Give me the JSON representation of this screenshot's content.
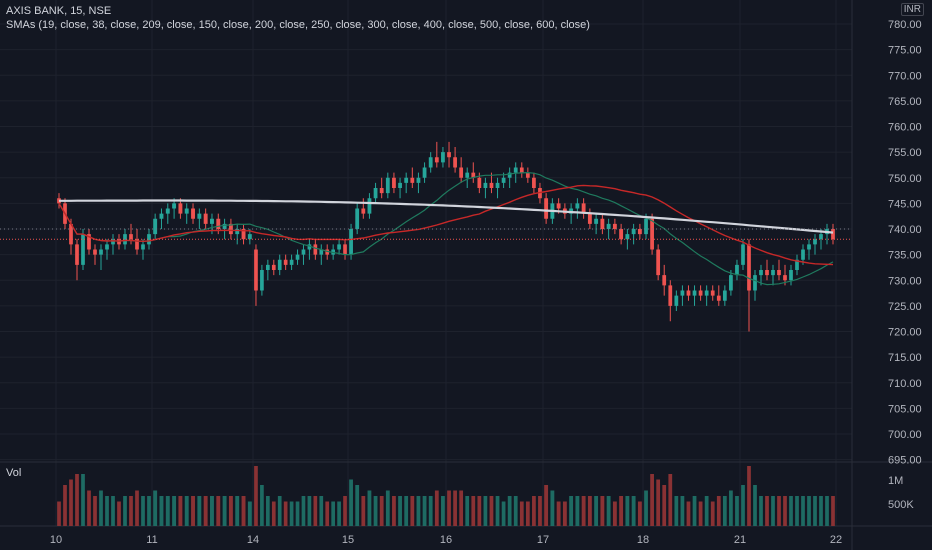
{
  "header": {
    "symbol": "AXIS BANK, 15, NSE",
    "indicator": "SMAs (19, close, 38, close, 209, close, 150, close, 200, close, 250, close, 300, close, 400, close, 500, close, 600, close)",
    "currency": "INR"
  },
  "volume_pane": {
    "label": "Vol"
  },
  "colors": {
    "up": "#26a69a",
    "down": "#ef5350",
    "vol_up": "#1e6b63",
    "vol_down": "#8a3234",
    "sma_fast": "#1f7a5e",
    "sma_mid": "#c62828",
    "sma_long": "#d1d4dc",
    "grid": "#1e222d",
    "background": "#131722",
    "axis_text": "#b2b5be"
  },
  "chart_data": {
    "type": "candlestick",
    "price_axis": {
      "ticks": [
        780,
        775,
        770,
        765,
        760,
        755,
        750,
        745,
        740,
        735,
        730,
        725,
        720,
        715,
        710,
        705,
        700,
        695
      ],
      "unit": "INR",
      "tick_labels": [
        "780.00",
        "775.00",
        "770.00",
        "765.00",
        "760.00",
        "755.00",
        "750.00",
        "745.00",
        "740.00",
        "735.00",
        "730.00",
        "725.00",
        "720.00",
        "715.00",
        "710.00",
        "705.00",
        "700.00",
        "695.00"
      ]
    },
    "volume_axis": {
      "ticks": [
        "1M",
        "500K"
      ]
    },
    "date_labels": [
      "10",
      "11",
      "14",
      "15",
      "16",
      "17",
      "18",
      "21",
      "22"
    ],
    "sessions": [
      {
        "label": "10",
        "bars": [
          [
            746,
            747,
            744,
            745
          ],
          [
            745,
            746,
            740,
            741
          ],
          [
            741,
            742,
            735,
            737
          ],
          [
            737,
            738,
            730,
            733
          ],
          [
            733,
            740,
            732,
            739
          ],
          [
            739,
            740,
            735,
            736
          ],
          [
            736,
            737,
            733,
            735
          ],
          [
            735,
            737,
            732,
            736
          ],
          [
            736,
            738,
            734,
            737
          ],
          [
            737,
            739,
            735,
            738
          ],
          [
            738,
            739,
            736,
            737
          ],
          [
            737,
            740,
            736,
            739
          ],
          [
            739,
            741,
            737,
            738
          ],
          [
            738,
            740,
            735,
            736
          ],
          [
            736,
            738,
            734,
            737
          ],
          [
            737,
            740,
            736,
            739
          ]
        ]
      },
      {
        "label": "11",
        "bars": [
          [
            739,
            743,
            738,
            742
          ],
          [
            742,
            744,
            740,
            743
          ],
          [
            743,
            745,
            741,
            744
          ],
          [
            744,
            746,
            742,
            745
          ],
          [
            745,
            746,
            742,
            743
          ],
          [
            743,
            745,
            741,
            744
          ],
          [
            744,
            745,
            741,
            742
          ],
          [
            742,
            744,
            740,
            743
          ],
          [
            743,
            744,
            740,
            741
          ],
          [
            741,
            743,
            739,
            742
          ],
          [
            742,
            743,
            739,
            740
          ],
          [
            740,
            742,
            738,
            741
          ],
          [
            741,
            742,
            738,
            739
          ],
          [
            739,
            741,
            737,
            740
          ],
          [
            740,
            741,
            737,
            738
          ],
          [
            738,
            740,
            737,
            739
          ]
        ]
      },
      {
        "label": "14",
        "bars": [
          [
            736,
            737,
            725,
            728
          ],
          [
            728,
            733,
            727,
            732
          ],
          [
            732,
            734,
            730,
            733
          ],
          [
            733,
            734,
            731,
            732
          ],
          [
            732,
            735,
            731,
            734
          ],
          [
            734,
            735,
            732,
            733
          ],
          [
            733,
            735,
            732,
            734
          ],
          [
            734,
            736,
            733,
            735
          ],
          [
            735,
            737,
            733,
            736
          ],
          [
            736,
            738,
            734,
            737
          ],
          [
            737,
            738,
            734,
            735
          ],
          [
            735,
            737,
            733,
            736
          ],
          [
            736,
            737,
            734,
            735
          ],
          [
            735,
            737,
            734,
            736
          ],
          [
            736,
            738,
            735,
            737
          ],
          [
            737,
            738,
            734,
            735
          ]
        ]
      },
      {
        "label": "15",
        "bars": [
          [
            735,
            741,
            734,
            740
          ],
          [
            740,
            745,
            739,
            744
          ],
          [
            744,
            746,
            742,
            743
          ],
          [
            743,
            747,
            742,
            746
          ],
          [
            746,
            749,
            745,
            748
          ],
          [
            748,
            750,
            746,
            747
          ],
          [
            747,
            751,
            746,
            750
          ],
          [
            750,
            751,
            747,
            748
          ],
          [
            748,
            750,
            746,
            749
          ],
          [
            749,
            751,
            747,
            750
          ],
          [
            750,
            752,
            748,
            749
          ],
          [
            749,
            751,
            747,
            750
          ],
          [
            750,
            753,
            749,
            752
          ],
          [
            752,
            755,
            751,
            754
          ],
          [
            754,
            757,
            752,
            753
          ],
          [
            753,
            756,
            752,
            755
          ]
        ]
      },
      {
        "label": "16",
        "bars": [
          [
            755,
            757,
            752,
            754
          ],
          [
            754,
            756,
            751,
            752
          ],
          [
            752,
            754,
            749,
            750
          ],
          [
            750,
            752,
            748,
            751
          ],
          [
            751,
            753,
            749,
            750
          ],
          [
            750,
            751,
            747,
            748
          ],
          [
            748,
            750,
            746,
            749
          ],
          [
            749,
            751,
            747,
            748
          ],
          [
            748,
            750,
            746,
            749
          ],
          [
            749,
            751,
            748,
            750
          ],
          [
            750,
            752,
            748,
            751
          ],
          [
            751,
            753,
            749,
            752
          ],
          [
            752,
            753,
            750,
            751
          ],
          [
            751,
            752,
            749,
            750
          ],
          [
            750,
            751,
            747,
            748
          ],
          [
            748,
            749,
            745,
            746
          ]
        ]
      },
      {
        "label": "17",
        "bars": [
          [
            746,
            747,
            741,
            742
          ],
          [
            742,
            746,
            741,
            745
          ],
          [
            745,
            746,
            743,
            744
          ],
          [
            744,
            745,
            742,
            743
          ],
          [
            743,
            745,
            741,
            744
          ],
          [
            744,
            746,
            742,
            745
          ],
          [
            745,
            746,
            742,
            743
          ],
          [
            743,
            744,
            740,
            741
          ],
          [
            741,
            743,
            739,
            742
          ],
          [
            742,
            743,
            739,
            740
          ],
          [
            740,
            742,
            738,
            741
          ],
          [
            741,
            742,
            739,
            740
          ],
          [
            740,
            741,
            737,
            738
          ],
          [
            738,
            740,
            736,
            739
          ],
          [
            739,
            741,
            737,
            740
          ],
          [
            740,
            741,
            738,
            739
          ]
        ]
      },
      {
        "label": "18",
        "bars": [
          [
            739,
            743,
            738,
            742
          ],
          [
            742,
            743,
            735,
            736
          ],
          [
            736,
            737,
            730,
            731
          ],
          [
            731,
            733,
            727,
            729
          ],
          [
            729,
            730,
            722,
            725
          ],
          [
            725,
            728,
            724,
            727
          ],
          [
            727,
            729,
            725,
            728
          ],
          [
            728,
            729,
            726,
            727
          ],
          [
            727,
            729,
            725,
            728
          ],
          [
            728,
            729,
            726,
            727
          ],
          [
            727,
            729,
            725,
            728
          ],
          [
            728,
            729,
            726,
            727
          ],
          [
            727,
            729,
            725,
            726
          ],
          [
            726,
            729,
            725,
            728
          ],
          [
            728,
            732,
            727,
            731
          ],
          [
            731,
            734,
            730,
            733
          ]
        ]
      },
      {
        "label": "21",
        "bars": [
          [
            733,
            738,
            732,
            737
          ],
          [
            737,
            738,
            720,
            728
          ],
          [
            728,
            732,
            726,
            731
          ],
          [
            731,
            733,
            729,
            732
          ],
          [
            732,
            734,
            730,
            731
          ],
          [
            731,
            733,
            729,
            732
          ],
          [
            732,
            734,
            730,
            731
          ],
          [
            731,
            733,
            729,
            730
          ],
          [
            730,
            733,
            729,
            732
          ],
          [
            732,
            735,
            731,
            734
          ],
          [
            734,
            737,
            733,
            736
          ],
          [
            736,
            738,
            734,
            737
          ],
          [
            737,
            739,
            735,
            738
          ],
          [
            738,
            740,
            736,
            739
          ],
          [
            739,
            741,
            737,
            740
          ],
          [
            740,
            741,
            737,
            738
          ]
        ]
      }
    ]
  }
}
